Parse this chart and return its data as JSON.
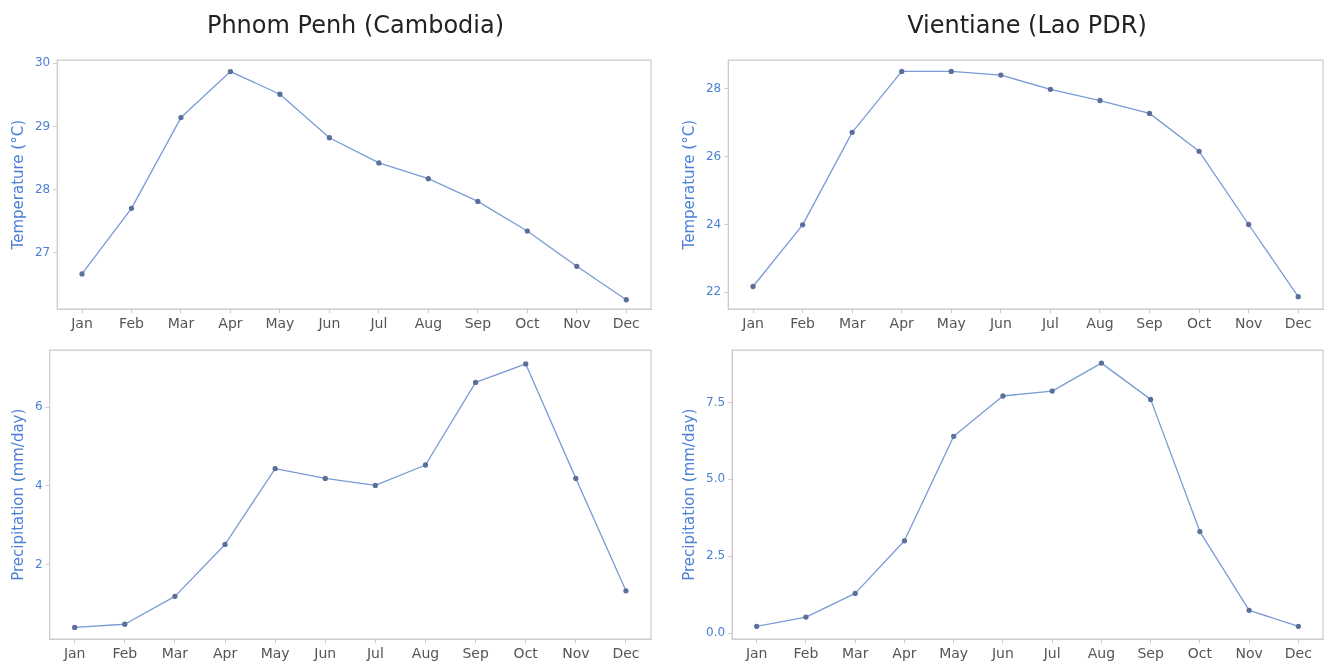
{
  "chart_data": [
    {
      "type": "line",
      "title": "Phnom Penh (Cambodia)",
      "ylabel": "Temperature (°C)",
      "categories": [
        "Jan",
        "Feb",
        "Mar",
        "Apr",
        "May",
        "Jun",
        "Jul",
        "Aug",
        "Sep",
        "Oct",
        "Nov",
        "Dec"
      ],
      "series": [
        {
          "color": "#7a9bd6",
          "values": [
            26.66,
            27.7,
            29.14,
            29.87,
            29.51,
            28.82,
            28.42,
            28.17,
            27.81,
            27.34,
            26.78,
            26.25
          ]
        }
      ],
      "ylim": [
        26.1,
        30.05
      ],
      "yticks": [
        27,
        28,
        29,
        30
      ],
      "grid": false,
      "legend": false,
      "marker": "circle",
      "line_style": "solid"
    },
    {
      "type": "line",
      "title": "Vientiane (Lao PDR)",
      "ylabel": "Temperature (°C)",
      "categories": [
        "Jan",
        "Feb",
        "Mar",
        "Apr",
        "May",
        "Jun",
        "Jul",
        "Aug",
        "Sep",
        "Oct",
        "Nov",
        "Dec"
      ],
      "series": [
        {
          "color": "#7a9bd6",
          "values": [
            22.17,
            23.99,
            26.72,
            28.52,
            28.52,
            28.41,
            27.99,
            27.66,
            27.28,
            26.16,
            24.0,
            21.87
          ]
        }
      ],
      "ylim": [
        21.5,
        28.85
      ],
      "yticks": [
        22,
        24,
        26,
        28
      ],
      "grid": false,
      "legend": false,
      "marker": "circle",
      "line_style": "solid"
    },
    {
      "type": "line",
      "ylabel": "Precipitation (mm/day)",
      "categories": [
        "Jan",
        "Feb",
        "Mar",
        "Apr",
        "May",
        "Jun",
        "Jul",
        "Aug",
        "Sep",
        "Oct",
        "Nov",
        "Dec"
      ],
      "series": [
        {
          "color": "#7a9bd6",
          "values": [
            0.4,
            0.48,
            1.19,
            2.51,
            4.44,
            4.19,
            4.01,
            4.53,
            6.63,
            7.1,
            4.19,
            1.33
          ]
        }
      ],
      "ylim": [
        0.1,
        7.45
      ],
      "yticks": [
        2,
        4,
        6
      ],
      "grid": false,
      "legend": false,
      "marker": "circle",
      "line_style": "solid"
    },
    {
      "type": "line",
      "ylabel": "Precipitation (mm/day)",
      "categories": [
        "Jan",
        "Feb",
        "Mar",
        "Apr",
        "May",
        "Jun",
        "Jul",
        "Aug",
        "Sep",
        "Oct",
        "Nov",
        "Dec"
      ],
      "series": [
        {
          "color": "#7a9bd6",
          "values": [
            0.22,
            0.52,
            1.29,
            3.0,
            6.4,
            7.71,
            7.87,
            8.78,
            7.6,
            3.3,
            0.74,
            0.22
          ]
        }
      ],
      "ylim": [
        -0.2,
        9.2
      ],
      "yticks": [
        {
          "value": 0,
          "label": "0.0"
        },
        {
          "value": 2.5,
          "label": "2.5"
        },
        {
          "value": 5,
          "label": "5.0"
        },
        {
          "value": 7.5,
          "label": "7.5"
        }
      ],
      "grid": false,
      "legend": false,
      "marker": "circle",
      "line_style": "solid"
    }
  ]
}
